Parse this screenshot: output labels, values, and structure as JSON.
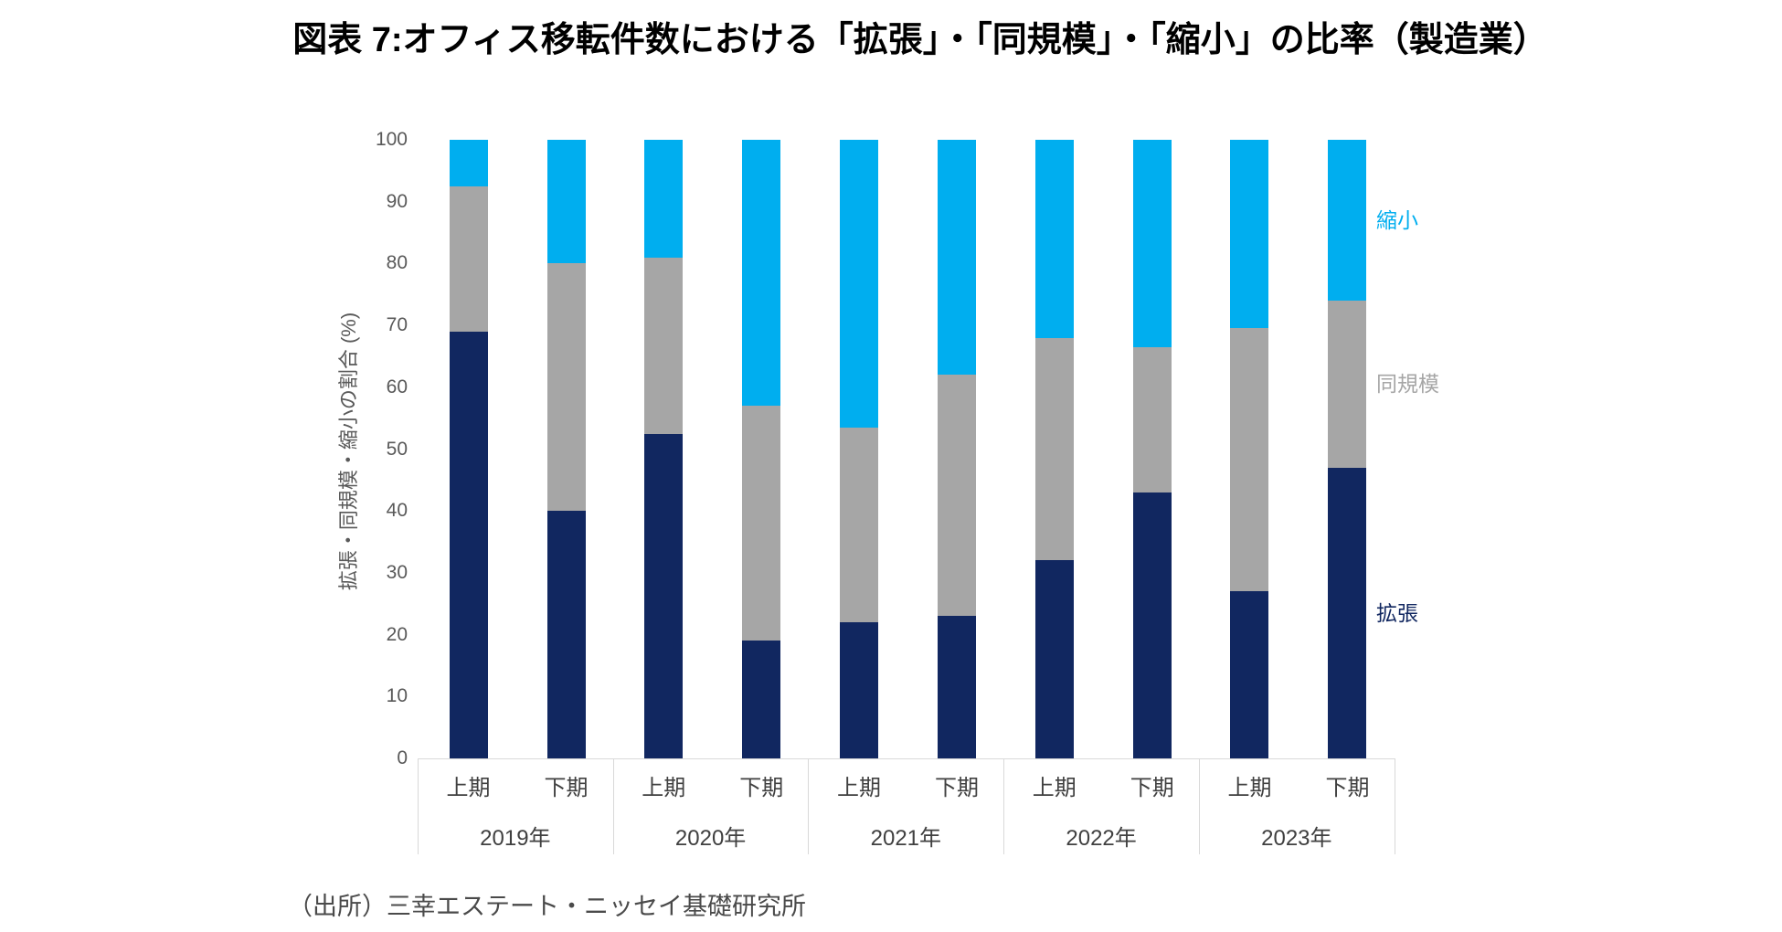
{
  "title": "図表 7:オフィス移転件数における「拡張」・「同規模」・「縮小」の比率（製造業）",
  "source": "（出所）三幸エステート・ニッセイ基礎研究所",
  "colors": {
    "expand_navy": "#112760",
    "same_gray": "#a6a6a6",
    "shrink_blue": "#00aeef",
    "axis_line": "#d9d9d9",
    "tick_text": "#595959",
    "category_text": "#404040"
  },
  "chart_data": {
    "type": "bar",
    "stacked": true,
    "title": "図表 7:オフィス移転件数における「拡張」・「同規模」・「縮小」の比率（製造業）",
    "xlabel": "",
    "ylabel": "拡張・同規模・縮小の割合 (%)",
    "ylim": [
      0,
      100
    ],
    "yticks": [
      0,
      10,
      20,
      30,
      40,
      50,
      60,
      70,
      80,
      90,
      100
    ],
    "grid": false,
    "legend_position": "right-of-last-bar",
    "unit": "%",
    "groups": [
      {
        "label": "2019年",
        "halves": [
          "上期",
          "下期"
        ]
      },
      {
        "label": "2020年",
        "halves": [
          "上期",
          "下期"
        ]
      },
      {
        "label": "2021年",
        "halves": [
          "上期",
          "下期"
        ]
      },
      {
        "label": "2022年",
        "halves": [
          "上期",
          "下期"
        ]
      },
      {
        "label": "2023年",
        "halves": [
          "上期",
          "下期"
        ]
      }
    ],
    "categories": [
      "2019年 上期",
      "2019年 下期",
      "2020年 上期",
      "2020年 下期",
      "2021年 上期",
      "2021年 下期",
      "2022年 上期",
      "2022年 下期",
      "2023年 上期",
      "2023年 下期"
    ],
    "series": [
      {
        "name": "拡張",
        "color": "#112760",
        "values": [
          69,
          40,
          52.5,
          19,
          22,
          23,
          32,
          43,
          27,
          47
        ]
      },
      {
        "name": "同規模",
        "color": "#a6a6a6",
        "values": [
          23.5,
          40,
          28.5,
          38,
          31.5,
          39,
          36,
          23.5,
          42.5,
          27
        ]
      },
      {
        "name": "縮小",
        "color": "#00aeef",
        "values": [
          7.5,
          20,
          19,
          43,
          46.5,
          38,
          32,
          33.5,
          30.5,
          26
        ]
      }
    ]
  }
}
